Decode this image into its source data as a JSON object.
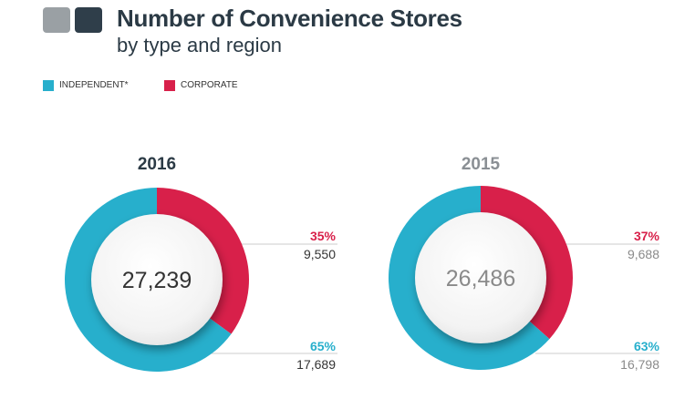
{
  "header": {
    "title": "Number of Convenience Stores",
    "subtitle": "by type and region",
    "logo_colors": [
      "#9aa0a4",
      "#2f3e4a"
    ]
  },
  "colors": {
    "independent": "#27afcc",
    "corporate": "#d8204a",
    "title": "#2b3a45",
    "total_dark": "#333333",
    "total_light": "#8a8a8a",
    "line": "#cccccc"
  },
  "legend": [
    {
      "label": "INDEPENDENT*",
      "color": "#27afcc"
    },
    {
      "label": "CORPORATE",
      "color": "#d8204a"
    }
  ],
  "chart_data": [
    {
      "type": "pie",
      "title": "2016",
      "total": "27,239",
      "categories": [
        "INDEPENDENT*",
        "CORPORATE"
      ],
      "values": [
        17689,
        9550
      ],
      "value_labels": [
        "17,689",
        "9,550"
      ],
      "percent_labels": [
        "65%",
        "35%"
      ]
    },
    {
      "type": "pie",
      "title": "2015",
      "total": "26,486",
      "categories": [
        "INDEPENDENT*",
        "CORPORATE"
      ],
      "values": [
        16798,
        9688
      ],
      "value_labels": [
        "16,798",
        "9,688"
      ],
      "percent_labels": [
        "63%",
        "37%"
      ]
    }
  ]
}
